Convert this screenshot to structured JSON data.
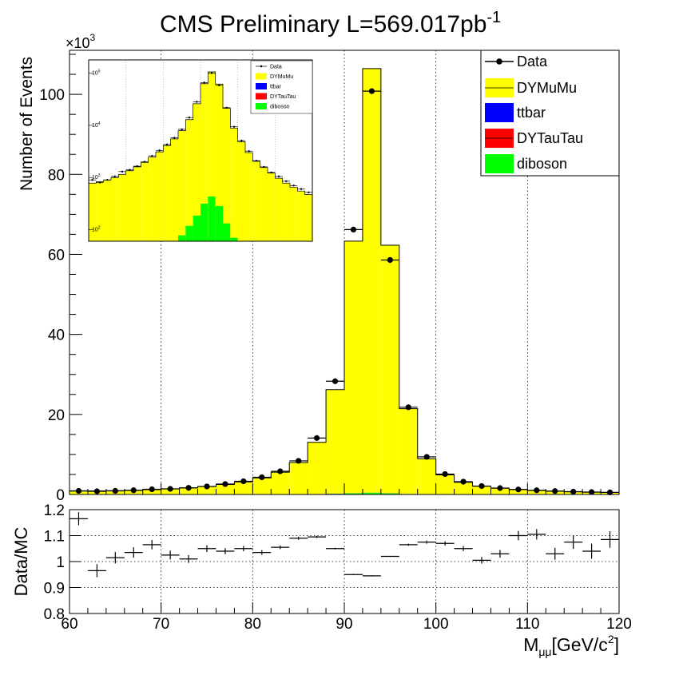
{
  "title": "CMS Preliminary L=569.017pb",
  "title_superscript": "-1",
  "y_multiplier_prefix": "×10",
  "y_multiplier_exp": "3",
  "colors": {
    "DYMuMu": "#ffff00",
    "ttbar": "#0000ff",
    "DYTauTau": "#ff0000",
    "diboson": "#00ff00"
  },
  "chart_data": [
    {
      "type": "bar",
      "stacked": true,
      "ylabel": "Number of Events",
      "xlabel_main": "M",
      "xlabel_sub": "μμ",
      "xlabel_unit": "[GeV/c",
      "xlabel_unit_sup": "2",
      "xlabel_unit_end": "]",
      "xlim": [
        60,
        120
      ],
      "ylim": [
        0,
        111
      ],
      "y_scale_note": "values in thousands",
      "x_ticks": [
        "60",
        "70",
        "80",
        "90",
        "100",
        "110",
        "120"
      ],
      "y_ticks": [
        "0",
        "20",
        "40",
        "60",
        "80",
        "100"
      ],
      "grid": true,
      "legend_position": "top-right",
      "legend": [
        "Data",
        "DYMuMu",
        "ttbar",
        "DYTauTau",
        "diboson"
      ],
      "bin_edges": [
        60,
        62,
        64,
        66,
        68,
        70,
        72,
        74,
        76,
        78,
        80,
        82,
        84,
        86,
        88,
        90,
        92,
        94,
        96,
        98,
        100,
        102,
        104,
        106,
        108,
        110,
        112,
        114,
        116,
        118,
        120
      ],
      "series": [
        {
          "name": "DYMuMu",
          "values": [
            0.78,
            0.83,
            0.9,
            1.0,
            1.15,
            1.35,
            1.6,
            1.95,
            2.45,
            3.1,
            4.1,
            5.5,
            7.9,
            12.9,
            26.0,
            63.0,
            106.0,
            62.0,
            21.3,
            8.85,
            4.85,
            3.0,
            2.05,
            1.55,
            1.22,
            0.97,
            0.78,
            0.65,
            0.55,
            0.47
          ]
        },
        {
          "name": "ttbar",
          "values": [
            0.05,
            0.05,
            0.04,
            0.04,
            0.04,
            0.04,
            0.04,
            0.04,
            0.04,
            0.04,
            0.04,
            0.04,
            0.04,
            0.04,
            0.04,
            0.04,
            0.04,
            0.04,
            0.03,
            0.03,
            0.03,
            0.03,
            0.02,
            0.02,
            0.02,
            0.02,
            0.02,
            0.02,
            0.02,
            0.02
          ]
        },
        {
          "name": "DYTauTau",
          "values": [
            0.003,
            0.003,
            0.003,
            0.003,
            0.003,
            0.003,
            0.003,
            0.003,
            0.003,
            0.003,
            0.003,
            0.003,
            0.003,
            0.003,
            0.003,
            0.003,
            0.003,
            0.003,
            0.003,
            0.003,
            0.003,
            0.003,
            0.003,
            0.003,
            0.003,
            0.003,
            0.003,
            0.003,
            0.003,
            0.003
          ]
        },
        {
          "name": "diboson",
          "values": [
            0.005,
            0.005,
            0.005,
            0.005,
            0.005,
            0.005,
            0.005,
            0.005,
            0.006,
            0.008,
            0.012,
            0.02,
            0.04,
            0.08,
            0.15,
            0.28,
            0.4,
            0.25,
            0.1,
            0.04,
            0.02,
            0.012,
            0.008,
            0.006,
            0.005,
            0.005,
            0.005,
            0.005,
            0.005,
            0.005
          ]
        }
      ],
      "data_points": [
        0.9,
        0.8,
        0.9,
        1.05,
        1.3,
        1.4,
        1.65,
        2.0,
        2.6,
        3.3,
        4.3,
        5.8,
        8.4,
        14.1,
        28.3,
        66.2,
        100.8,
        58.6,
        21.8,
        9.4,
        5.1,
        3.2,
        2.1,
        1.6,
        1.25,
        1.05,
        0.85,
        0.7,
        0.6,
        0.52
      ]
    },
    {
      "type": "scatter",
      "ylabel": "Data/MC",
      "xlim": [
        60,
        120
      ],
      "ylim": [
        0.8,
        1.2
      ],
      "y_ticks": [
        "0.8",
        "0.9",
        "1",
        "1.1",
        "1.2"
      ],
      "grid": true,
      "x": [
        61,
        63,
        65,
        67,
        69,
        71,
        73,
        75,
        77,
        79,
        81,
        83,
        85,
        87,
        89,
        91,
        93,
        95,
        97,
        99,
        101,
        103,
        105,
        107,
        109,
        111,
        113,
        115,
        117,
        119
      ],
      "y": [
        1.165,
        0.965,
        1.015,
        1.035,
        1.065,
        1.025,
        1.01,
        1.05,
        1.04,
        1.05,
        1.035,
        1.055,
        1.09,
        1.095,
        1.05,
        0.95,
        0.945,
        1.02,
        1.065,
        1.075,
        1.07,
        1.05,
        1.005,
        1.03,
        1.1,
        1.105,
        1.03,
        1.075,
        1.04,
        1.085
      ],
      "yerr": [
        0.025,
        0.025,
        0.022,
        0.02,
        0.018,
        0.017,
        0.015,
        0.013,
        0.012,
        0.01,
        0.009,
        0.007,
        0.006,
        0.004,
        0.003,
        0.002,
        0.002,
        0.002,
        0.004,
        0.006,
        0.008,
        0.01,
        0.013,
        0.015,
        0.018,
        0.02,
        0.023,
        0.026,
        0.029,
        0.032
      ]
    },
    {
      "type": "bar",
      "stacked": true,
      "inset": true,
      "y_scale": "log",
      "ylim": [
        60,
        180000
      ],
      "y_ticks": [
        "10",
        "10",
        "10",
        "10"
      ],
      "y_tick_exps": [
        "2",
        "3",
        "4",
        "5"
      ],
      "legend": [
        "Data",
        "DYMuMu",
        "ttbar",
        "DYTauTau",
        "diboson"
      ],
      "legend_position": "top-right",
      "bin_count": 30,
      "series_total": [
        780,
        830,
        900,
        1000,
        1150,
        1350,
        1600,
        1950,
        2450,
        3100,
        4100,
        5500,
        7900,
        12900,
        26000,
        63000,
        106000,
        62000,
        21300,
        8850,
        4850,
        3000,
        2050,
        1550,
        1220,
        970,
        780,
        650,
        550,
        470
      ],
      "ttbar": [
        50,
        50,
        46,
        42,
        42,
        40,
        40,
        40,
        40,
        40,
        40,
        40,
        38,
        38,
        36,
        35,
        34,
        33,
        32,
        30,
        28,
        28,
        26,
        25,
        24,
        22,
        22,
        21,
        20,
        20
      ],
      "diboson_top": [
        50,
        50,
        46,
        42,
        42,
        40,
        40,
        40,
        41,
        46,
        52,
        60,
        78,
        118,
        186,
        315,
        434,
        283,
        132,
        70,
        48,
        40,
        34,
        31,
        29,
        27,
        27,
        26,
        25,
        25
      ],
      "data_points": [
        900,
        800,
        900,
        1050,
        1300,
        1400,
        1650,
        2000,
        2600,
        3300,
        4300,
        5800,
        8400,
        14100,
        28300,
        66200,
        100800,
        58600,
        21800,
        9400,
        5100,
        3200,
        2100,
        1600,
        1250,
        1050,
        850,
        700,
        600,
        520
      ]
    }
  ]
}
